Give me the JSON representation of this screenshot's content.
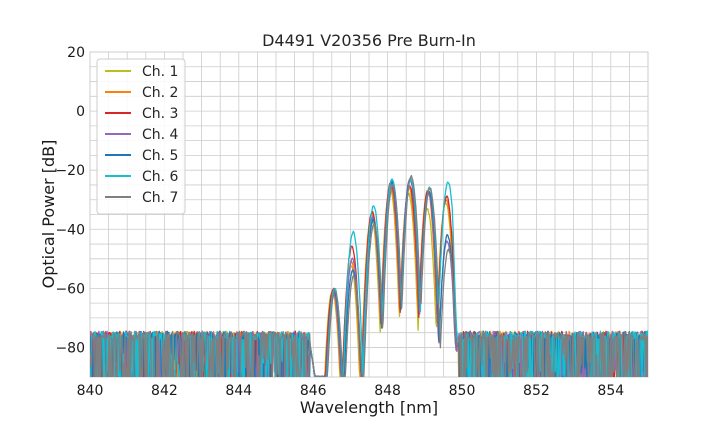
{
  "chart_data": {
    "type": "line",
    "title": "D4491 V20356 Pre Burn-In",
    "xlabel": "Wavelength [nm]",
    "ylabel": "Optical Power [dB]",
    "xlim": [
      840,
      855
    ],
    "ylim": [
      -90,
      20
    ],
    "xticks": [
      840,
      842,
      844,
      846,
      848,
      850,
      852,
      854
    ],
    "yticks": [
      20,
      0,
      -20,
      -40,
      -60,
      -80
    ],
    "x_minor_step": 0.5,
    "y_minor_step": 5,
    "grid": true,
    "legend_position": "top-left",
    "noise_floor_db": -78,
    "series": [
      {
        "name": "Ch. 1",
        "color": "#bcbd22",
        "peaks_db": [
          -61,
          -52,
          -36,
          -26,
          -28,
          -33,
          -31
        ]
      },
      {
        "name": "Ch. 2",
        "color": "#ff7f0e",
        "peaks_db": [
          -61,
          -51,
          -35,
          -25,
          -26,
          -27,
          -30
        ]
      },
      {
        "name": "Ch. 3",
        "color": "#d62728",
        "peaks_db": [
          -60,
          -46,
          -34,
          -24,
          -25,
          -27,
          -29
        ]
      },
      {
        "name": "Ch. 4",
        "color": "#9467bd",
        "peaks_db": [
          -62,
          -50,
          -36,
          -24,
          -23,
          -28,
          -44
        ]
      },
      {
        "name": "Ch. 5",
        "color": "#1f77b4",
        "peaks_db": [
          -61,
          -54,
          -37,
          -24,
          -23,
          -27,
          -42
        ]
      },
      {
        "name": "Ch. 6",
        "color": "#17becf",
        "peaks_db": [
          -60,
          -41,
          -32,
          -23,
          -23,
          -26,
          -24
        ]
      },
      {
        "name": "Ch. 7",
        "color": "#7f7f7f",
        "peaks_db": [
          -61,
          -56,
          -38,
          -25,
          -22,
          -26,
          -47
        ]
      }
    ],
    "peak_wavelengths_nm": [
      846.55,
      847.05,
      847.6,
      848.1,
      848.6,
      849.1,
      849.6
    ],
    "band_nm": [
      845.9,
      849.9
    ]
  }
}
